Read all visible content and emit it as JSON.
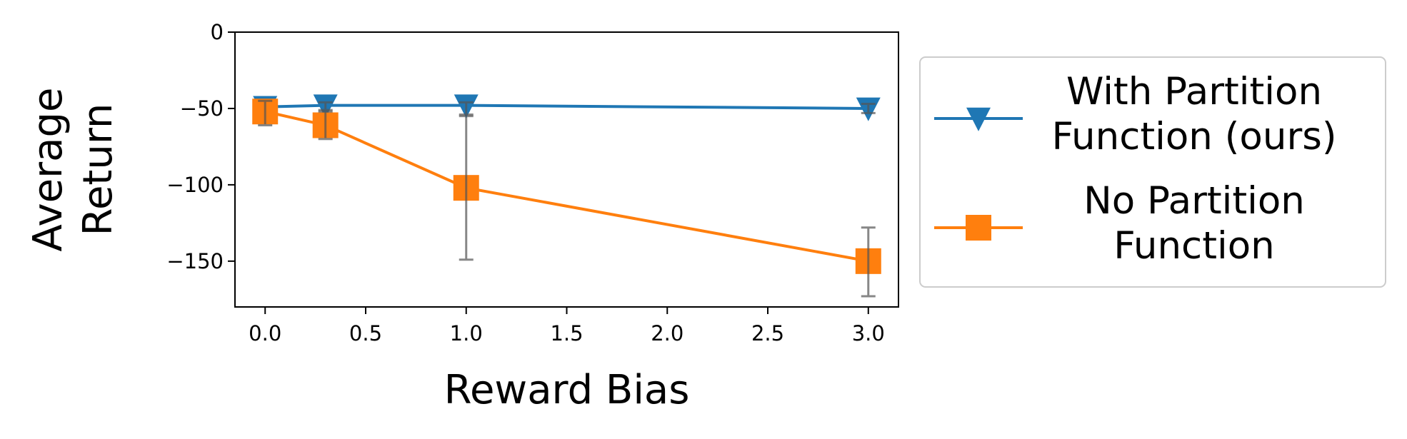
{
  "chart_data": {
    "type": "line",
    "title": "",
    "xlabel": "Reward Bias",
    "ylabel": [
      "Average",
      "Return"
    ],
    "xlim": [
      -0.15,
      3.15
    ],
    "ylim": [
      -180,
      0
    ],
    "xticks": [
      0.0,
      0.5,
      1.0,
      1.5,
      2.0,
      2.5,
      3.0
    ],
    "xtick_labels": [
      "0.0",
      "0.5",
      "1.0",
      "1.5",
      "2.0",
      "2.5",
      "3.0"
    ],
    "yticks": [
      0,
      -50,
      -100,
      -150
    ],
    "ytick_labels": [
      "0",
      "−50",
      "−100",
      "−150"
    ],
    "grid": false,
    "legend_position": "outside right",
    "series": [
      {
        "name": "With Partition Function (ours)",
        "legend_lines": [
          "With Partition",
          "Function (ours)"
        ],
        "color": "#1f77b4",
        "marker": "triangle-down",
        "x": [
          0.0,
          0.3,
          1.0,
          3.0
        ],
        "y": [
          -49,
          -48,
          -48,
          -50
        ],
        "err_low": [
          -52,
          -51,
          -54,
          -53
        ],
        "err_high": [
          -46,
          -46,
          -46,
          -47
        ]
      },
      {
        "name": "No Partition Function",
        "legend_lines": [
          "No Partition",
          "Function"
        ],
        "color": "#ff7f0e",
        "marker": "square",
        "x": [
          0.0,
          0.3,
          1.0,
          3.0
        ],
        "y": [
          -52,
          -61,
          -102,
          -150
        ],
        "err_low": [
          -61,
          -70,
          -149,
          -173
        ],
        "err_high": [
          -45,
          -52,
          -55,
          -128
        ]
      }
    ],
    "errorbar_color": "#555555"
  }
}
